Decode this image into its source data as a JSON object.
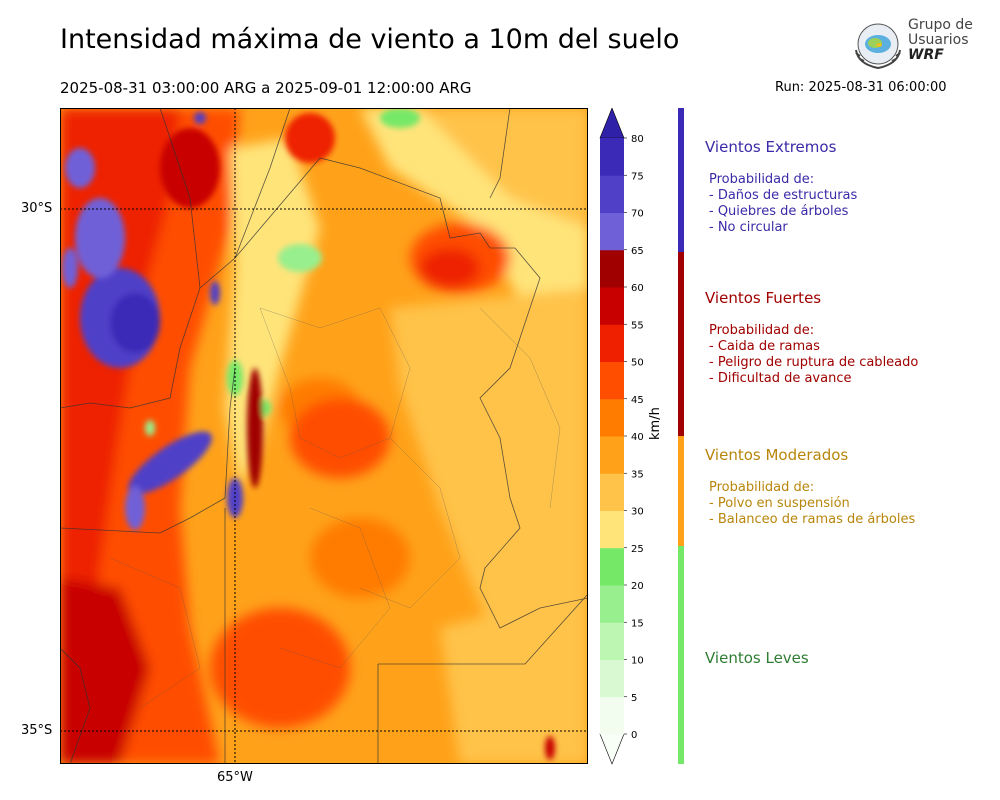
{
  "header": {
    "title": "Intensidad máxima de viento a 10m del suelo",
    "period": "2025-08-31 03:00:00 ARG  a  2025-09-01 12:00:00 ARG",
    "run": "Run: 2025-08-31 06:00:00"
  },
  "logo": {
    "line1": "Grupo de",
    "line2": "Usuarios",
    "line3": "WRF",
    "icon": "globe-laurel-icon"
  },
  "map": {
    "lat_labels": [
      "30°S",
      "35°S"
    ],
    "lon_labels": [
      "65°W"
    ],
    "field": "wind-speed-shaded"
  },
  "colorbar": {
    "unit": "km/h",
    "ticks": [
      "0",
      "5",
      "10",
      "15",
      "20",
      "25",
      "30",
      "35",
      "40",
      "45",
      "50",
      "55",
      "60",
      "65",
      "70",
      "75",
      "80"
    ],
    "colors": [
      "#f2fdf0",
      "#d8f9d2",
      "#bdf5b2",
      "#98ef8d",
      "#76e868",
      "#ffe47a",
      "#ffc34a",
      "#ffa21a",
      "#ff7c00",
      "#ff4e00",
      "#ee2000",
      "#c80000",
      "#a00000",
      "#7060d8",
      "#5040c8",
      "#3b2ab8"
    ],
    "extend_top": "#3022a8",
    "extend_bottom": "#f8fff6"
  },
  "categories": [
    {
      "title": "Vientos Extremos",
      "color": "#3a2aa8",
      "lines": [
        "Probabilidad de:",
        "- Daños de estructuras",
        "- Quiebres de árboles",
        "- No circular"
      ]
    },
    {
      "title": "Vientos Fuertes",
      "color": "#a00000",
      "lines": [
        "Probabilidad de:",
        "- Caida de ramas",
        "- Peligro de ruptura de cableado",
        "- Dificultad de avance"
      ]
    },
    {
      "title": "Vientos Moderados",
      "color": "#b8860b",
      "lines": [
        "Probabilidad de:",
        "- Polvo en suspensión",
        "- Balanceo de ramas de árboles"
      ]
    },
    {
      "title": "Vientos Leves",
      "color": "#2e7d32",
      "lines": []
    }
  ]
}
